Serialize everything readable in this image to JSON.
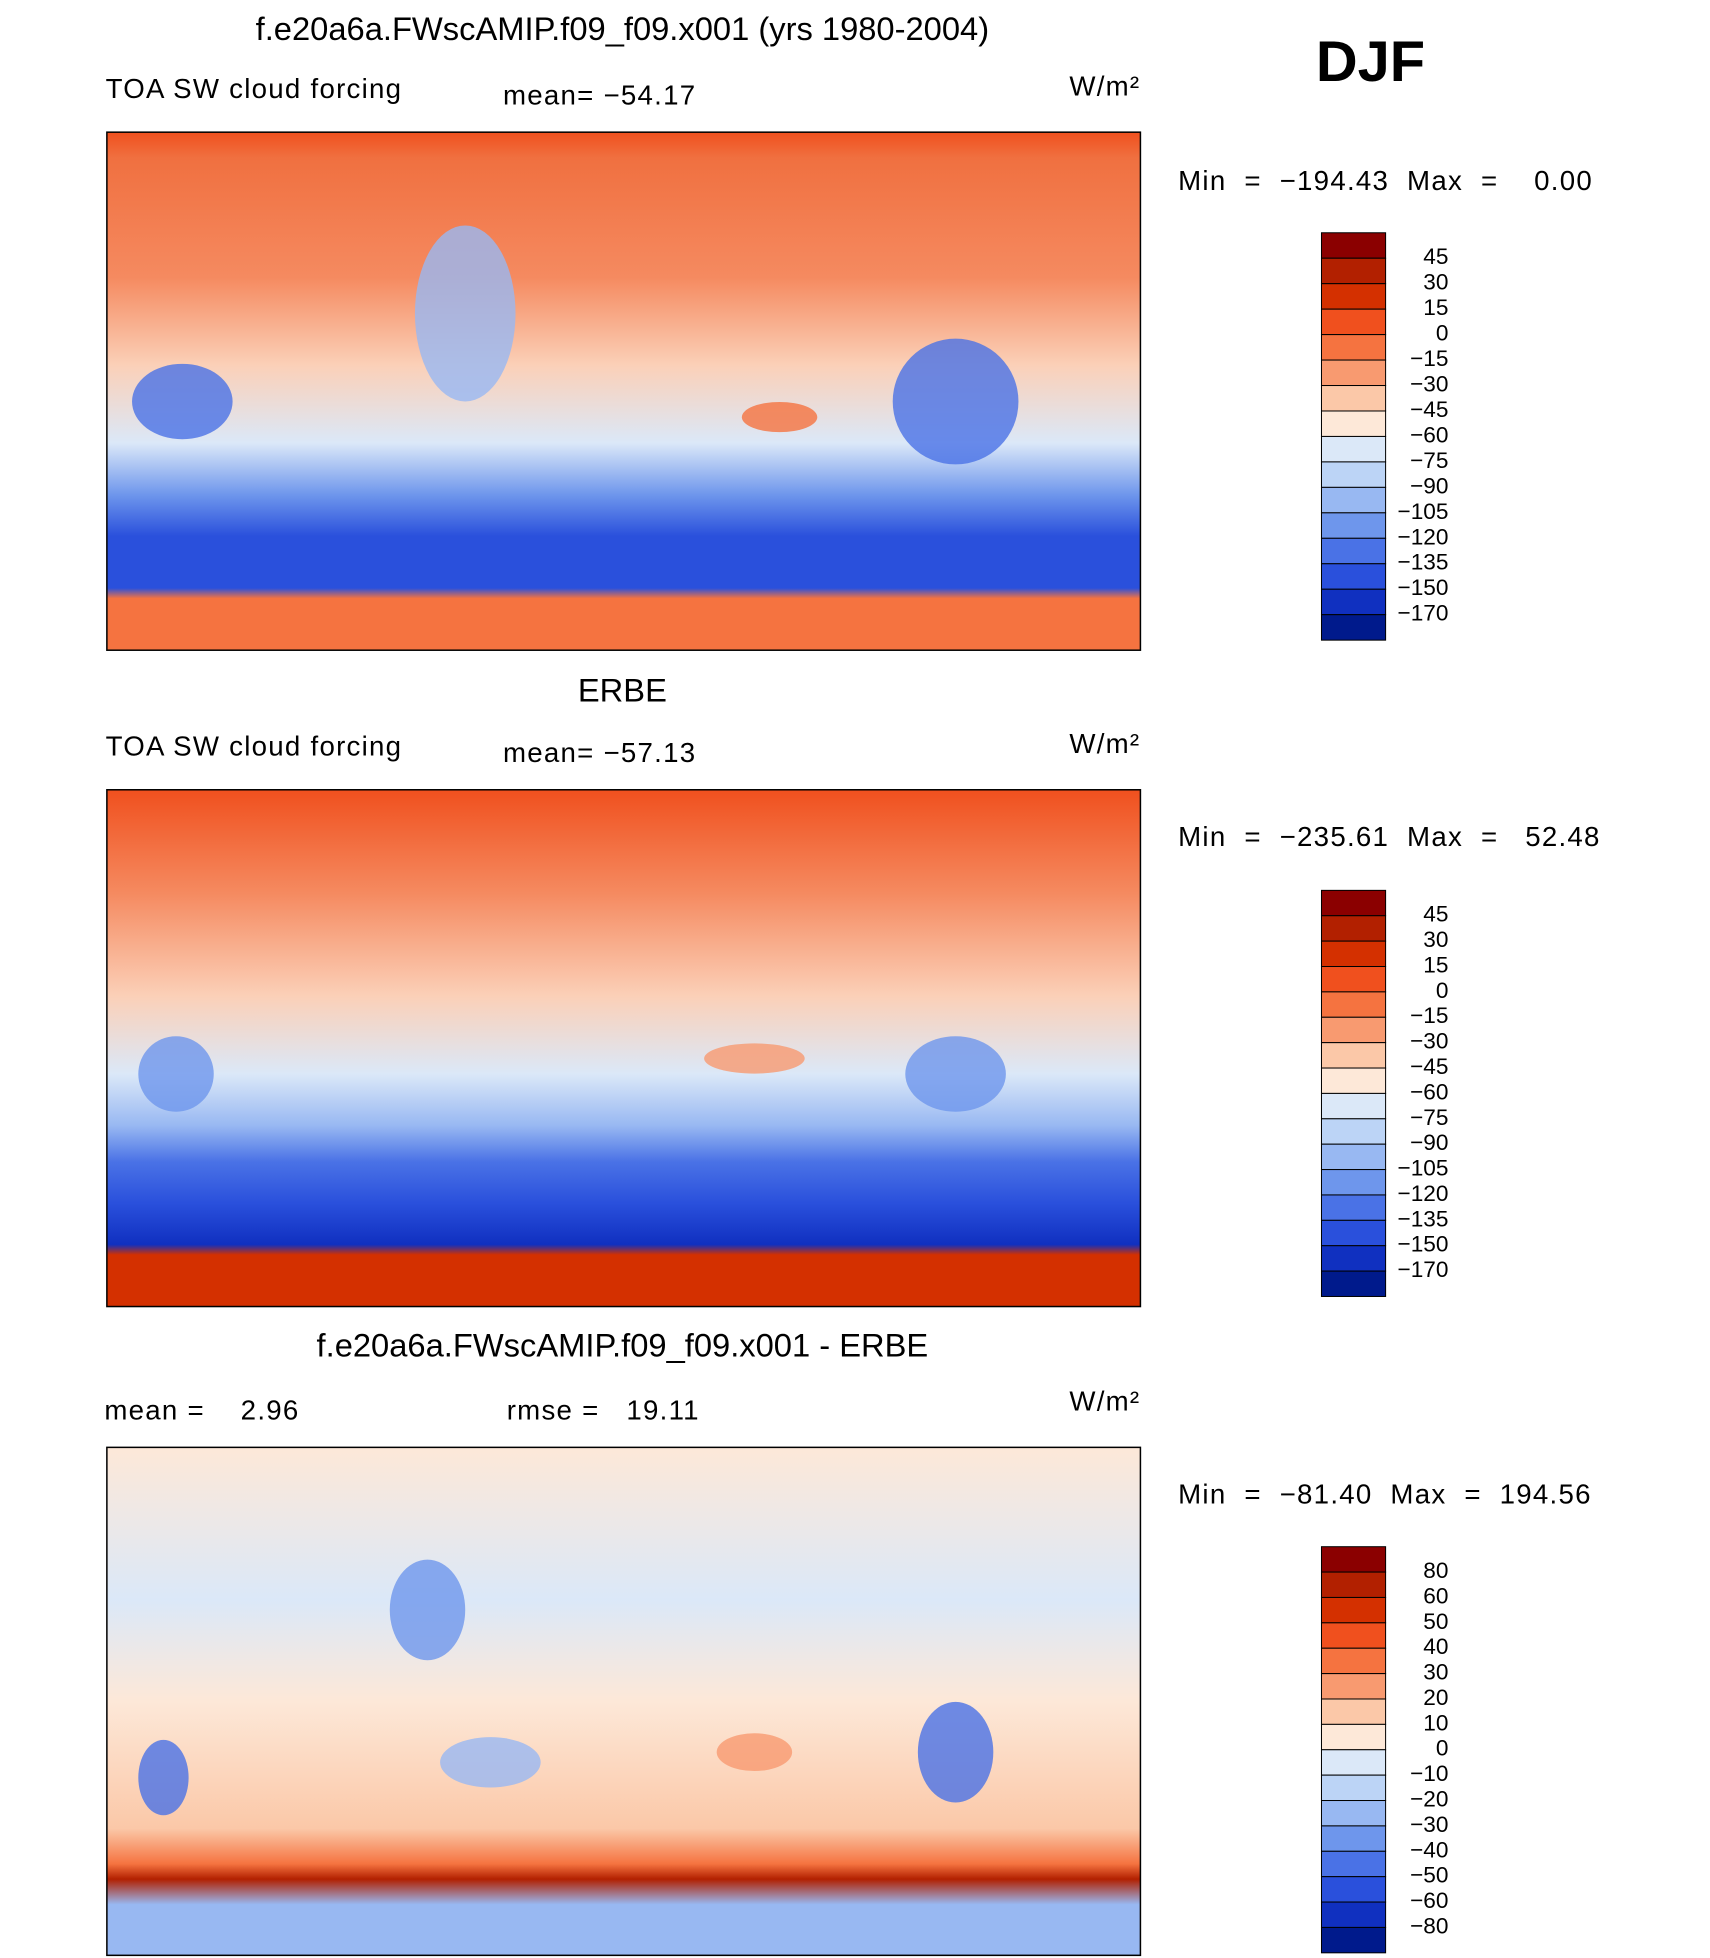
{
  "header": {
    "season": "DJF"
  },
  "panels": [
    {
      "title": "f.e20a6a.FWscAMIP.f09_f09.x001 (yrs 1980-2004)",
      "field": "TOA SW cloud forcing",
      "stat": "mean= −54.17",
      "units": "W/m²",
      "range": "Min  =  −194.43  Max  =    0.00",
      "colorbar": {
        "labels": [
          "45",
          "30",
          "15",
          "0",
          "−15",
          "−30",
          "−45",
          "−60",
          "−75",
          "−90",
          "−105",
          "−120",
          "−135",
          "−150",
          "−170"
        ],
        "colors": [
          "#8b0000",
          "#b22000",
          "#d43000",
          "#f0501e",
          "#f57340",
          "#f89a70",
          "#fbc8a8",
          "#fde8d8",
          "#dbe8f8",
          "#bcd4f6",
          "#98b8f2",
          "#6e96ec",
          "#4a72e6",
          "#2a50dc",
          "#1030c0",
          "#001a8c"
        ]
      }
    },
    {
      "title": "ERBE",
      "field": "TOA SW cloud forcing",
      "stat": "mean= −57.13",
      "units": "W/m²",
      "range": "Min  =  −235.61  Max  =   52.48",
      "colorbar": {
        "labels": [
          "45",
          "30",
          "15",
          "0",
          "−15",
          "−30",
          "−45",
          "−60",
          "−75",
          "−90",
          "−105",
          "−120",
          "−135",
          "−150",
          "−170"
        ],
        "colors": [
          "#8b0000",
          "#b22000",
          "#d43000",
          "#f0501e",
          "#f57340",
          "#f89a70",
          "#fbc8a8",
          "#fde8d8",
          "#dbe8f8",
          "#bcd4f6",
          "#98b8f2",
          "#6e96ec",
          "#4a72e6",
          "#2a50dc",
          "#1030c0",
          "#001a8c"
        ]
      }
    },
    {
      "title": "f.e20a6a.FWscAMIP.f09_f09.x001 - ERBE",
      "stat": "mean =    2.96",
      "stat2": "rmse =   19.11",
      "units": "W/m²",
      "range": "Min  =  −81.40  Max  =  194.56",
      "colorbar": {
        "labels": [
          "80",
          "60",
          "50",
          "40",
          "30",
          "20",
          "10",
          "0",
          "−10",
          "−20",
          "−30",
          "−40",
          "−50",
          "−60",
          "−80"
        ],
        "colors": [
          "#8b0000",
          "#b22000",
          "#d43000",
          "#f0501e",
          "#f57340",
          "#f89a70",
          "#fbc8a8",
          "#fde8d8",
          "#dbe8f8",
          "#bcd4f6",
          "#98b8f2",
          "#6e96ec",
          "#4a72e6",
          "#2a50dc",
          "#1030c0",
          "#001a8c"
        ]
      }
    }
  ]
}
